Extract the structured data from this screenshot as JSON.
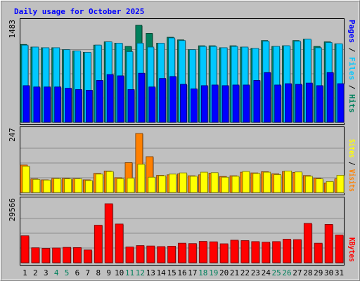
{
  "chart_data": {
    "type": "bar",
    "title": "Daily usage for October 2025",
    "days": [
      1,
      2,
      3,
      4,
      5,
      6,
      7,
      8,
      9,
      10,
      11,
      12,
      13,
      14,
      15,
      16,
      17,
      18,
      19,
      20,
      21,
      22,
      23,
      24,
      25,
      26,
      27,
      28,
      29,
      30,
      31
    ],
    "weekend_days": [
      4,
      5,
      11,
      12,
      18,
      19,
      25,
      26
    ],
    "panels": [
      {
        "id": "hits",
        "ytick": "1483",
        "ymax": 1483,
        "series": [
          {
            "name": "Hits",
            "color": "#00805c",
            "values": [
              1190,
              1150,
              1140,
              1140,
              1110,
              1090,
              1070,
              1180,
              1230,
              1210,
              1160,
              1483,
              1360,
              1210,
              1300,
              1260,
              1110,
              1170,
              1170,
              1140,
              1170,
              1150,
              1130,
              1250,
              1160,
              1170,
              1250,
              1270,
              1160,
              1230,
              1200
            ]
          },
          {
            "name": "Files",
            "color": "#00c8ff",
            "values": [
              1180,
              1150,
              1140,
              1140,
              1110,
              1090,
              1070,
              1180,
              1230,
              1210,
              1080,
              1210,
              1150,
              1210,
              1290,
              1250,
              1110,
              1160,
              1160,
              1140,
              1160,
              1150,
              1130,
              1240,
              1160,
              1170,
              1240,
              1270,
              1140,
              1220,
              1200
            ]
          },
          {
            "name": "Pages",
            "color": "#0000ff",
            "values": [
              560,
              540,
              540,
              540,
              520,
              500,
              490,
              640,
              730,
              710,
              500,
              750,
              540,
              670,
              700,
              580,
              510,
              560,
              570,
              560,
              570,
              570,
              640,
              760,
              570,
              590,
              580,
              600,
              560,
              760,
              590
            ]
          }
        ]
      },
      {
        "id": "visits",
        "ytick": "247",
        "ymax": 247,
        "series": [
          {
            "name": "Visits",
            "color": "#ff8000",
            "values": [
              115,
              57,
              53,
              59,
              59,
              58,
              53,
              80,
              90,
              62,
              125,
              247,
              150,
              72,
              74,
              78,
              70,
              74,
              81,
              67,
              70,
              85,
              82,
              87,
              78,
              88,
              84,
              71,
              60,
              40,
              57
            ]
          },
          {
            "name": "Sites",
            "color": "#ffff00",
            "values": [
              110,
              55,
              52,
              58,
              57,
              57,
              50,
              77,
              88,
              58,
              60,
              118,
              64,
              70,
              77,
              82,
              68,
              85,
              83,
              64,
              68,
              88,
              80,
              85,
              75,
              90,
              86,
              68,
              57,
              46,
              72
            ]
          }
        ]
      },
      {
        "id": "kbytes",
        "ytick": "29566",
        "ymax": 29566,
        "series": [
          {
            "name": "KBytes",
            "color": "#ff0000",
            "values": [
              13500,
              7500,
              7200,
              7400,
              7700,
              7600,
              6400,
              18800,
              29566,
              19400,
              7900,
              8600,
              8400,
              8100,
              8300,
              9800,
              9600,
              10700,
              10500,
              9500,
              11300,
              11100,
              10600,
              10300,
              10600,
              11800,
              11600,
              19700,
              9800,
              19200,
              13900
            ]
          }
        ]
      }
    ]
  }
}
